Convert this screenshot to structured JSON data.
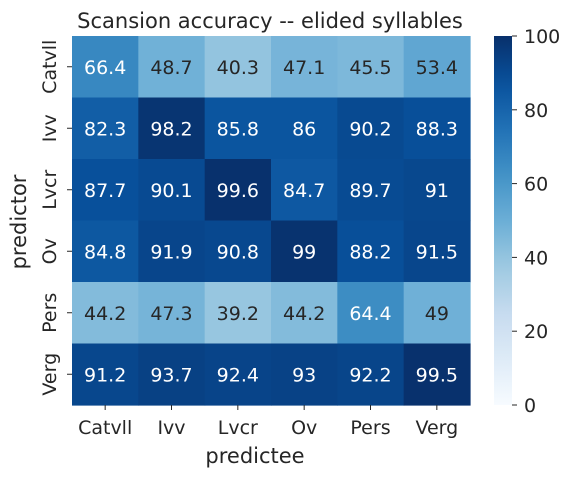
{
  "chart_data": {
    "type": "heatmap",
    "title": "Scansion accuracy -- elided syllables",
    "xlabel": "predictee",
    "ylabel": "predictor",
    "x_categories": [
      "Catvll",
      "Ivv",
      "Lvcr",
      "Ov",
      "Pers",
      "Verg"
    ],
    "y_categories": [
      "Catvll",
      "Ivv",
      "Lvcr",
      "Ov",
      "Pers",
      "Verg"
    ],
    "values": [
      [
        66.4,
        48.7,
        40.3,
        47.1,
        45.5,
        53.4
      ],
      [
        82.3,
        98.2,
        85.8,
        86,
        90.2,
        88.3
      ],
      [
        87.7,
        90.1,
        99.6,
        84.7,
        89.7,
        91
      ],
      [
        84.8,
        91.9,
        90.8,
        99,
        88.2,
        91.5
      ],
      [
        44.2,
        47.3,
        39.2,
        44.2,
        64.4,
        49
      ],
      [
        91.2,
        93.7,
        92.4,
        93,
        92.2,
        99.5
      ]
    ],
    "colorbar": {
      "range": [
        0,
        100
      ],
      "ticks": [
        0,
        20,
        40,
        60,
        80,
        100
      ],
      "colormap": "Blues",
      "color_low": "#f7fbff",
      "color_high": "#08306b"
    },
    "grid": false
  }
}
